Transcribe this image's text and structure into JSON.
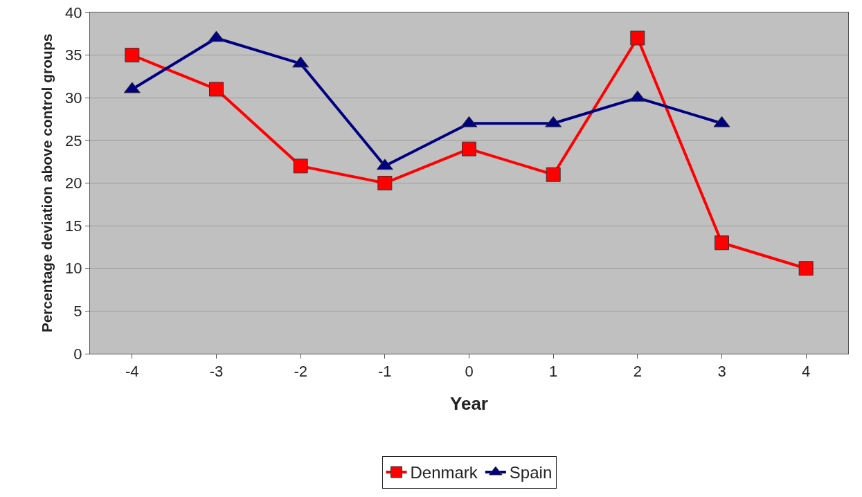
{
  "chart_data": {
    "type": "line",
    "xlabel": "Year",
    "ylabel": "Percentage deviation above control groups",
    "categories": [
      "-4",
      "-3",
      "-2",
      "-1",
      "0",
      "1",
      "2",
      "3",
      "4"
    ],
    "series": [
      {
        "name": "Denmark",
        "color": "#ff0000",
        "marker": "square",
        "values": [
          35,
          31,
          22,
          20,
          24,
          21,
          37,
          13,
          10
        ]
      },
      {
        "name": "Spain",
        "color": "#000080",
        "marker": "triangle",
        "values": [
          31,
          37,
          34,
          22,
          27,
          27,
          30,
          27,
          null
        ]
      }
    ],
    "ylim": [
      0,
      40
    ],
    "yticks": [
      0,
      5,
      10,
      15,
      20,
      25,
      30,
      35,
      40
    ],
    "grid": "y",
    "legend": "bottom",
    "line_style": "solid"
  }
}
